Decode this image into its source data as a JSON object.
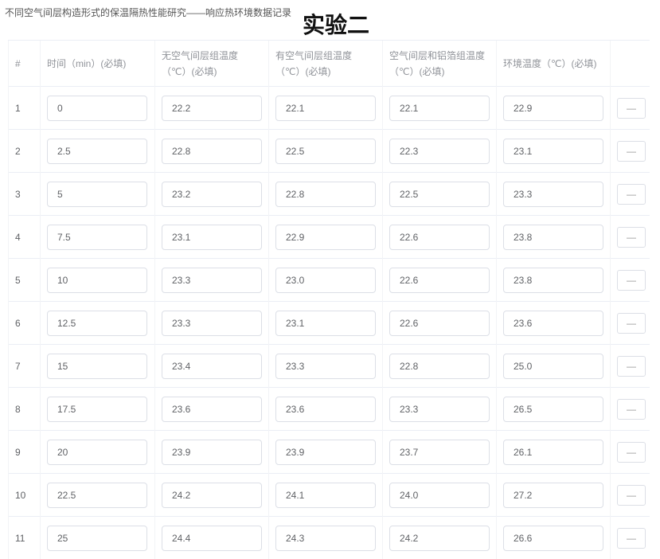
{
  "header": {
    "subtitle": "不同空气间层构造形式的保温隔热性能研究——响应热环境数据记录",
    "title": "实验二"
  },
  "columns": [
    "#",
    "时间（min）(必填)",
    "无空气间层组温度（℃）(必填)",
    "有空气间层组温度（℃）(必填)",
    "空气间层和铝箔组温度（℃）(必填)",
    "环境温度（℃）(必填)"
  ],
  "remove_label": "—",
  "rows": [
    [
      "1",
      "0",
      "22.2",
      "22.1",
      "22.1",
      "22.9"
    ],
    [
      "2",
      "2.5",
      "22.8",
      "22.5",
      "22.3",
      "23.1"
    ],
    [
      "3",
      "5",
      "23.2",
      "22.8",
      "22.5",
      "23.3"
    ],
    [
      "4",
      "7.5",
      "23.1",
      "22.9",
      "22.6",
      "23.8"
    ],
    [
      "5",
      "10",
      "23.3",
      "23.0",
      "22.6",
      "23.8"
    ],
    [
      "6",
      "12.5",
      "23.3",
      "23.1",
      "22.6",
      "23.6"
    ],
    [
      "7",
      "15",
      "23.4",
      "23.3",
      "22.8",
      "25.0"
    ],
    [
      "8",
      "17.5",
      "23.6",
      "23.6",
      "23.3",
      "26.5"
    ],
    [
      "9",
      "20",
      "23.9",
      "23.9",
      "23.7",
      "26.1"
    ],
    [
      "10",
      "22.5",
      "24.2",
      "24.1",
      "24.0",
      "27.2"
    ],
    [
      "11",
      "25",
      "24.4",
      "24.3",
      "24.2",
      "26.6"
    ]
  ]
}
